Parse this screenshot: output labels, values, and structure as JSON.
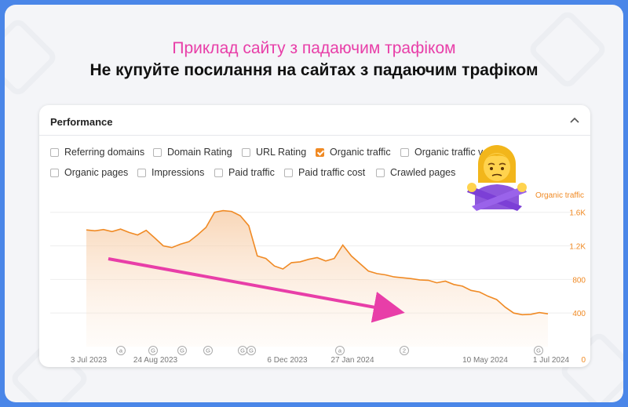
{
  "header": {
    "subtitle": "Приклад сайту з падаючим трафіком",
    "title": "Не купуйте посилання на сайтах з падаючим трафіком"
  },
  "card": {
    "title": "Performance",
    "collapse_icon": "chevron-up-icon",
    "metrics": [
      {
        "label": "Referring domains",
        "checked": false
      },
      {
        "label": "Domain Rating",
        "checked": false
      },
      {
        "label": "URL Rating",
        "checked": false
      },
      {
        "label": "Organic traffic",
        "checked": true
      },
      {
        "label": "Organic traffic v",
        "checked": false
      },
      {
        "label": "Organic pages",
        "checked": false
      },
      {
        "label": "Impressions",
        "checked": false
      },
      {
        "label": "Paid traffic",
        "checked": false
      },
      {
        "label": "Paid traffic cost",
        "checked": false
      },
      {
        "label": "Crawled pages",
        "checked": false
      }
    ]
  },
  "emoji": "person-gesturing-no-icon",
  "colors": {
    "accent": "#f08a24",
    "arrow": "#e83ea8",
    "frame": "#4a86e8"
  },
  "chart_data": {
    "type": "area",
    "series": [
      {
        "name": "Organic traffic",
        "values": [
          1390,
          1380,
          1395,
          1370,
          1400,
          1360,
          1330,
          1385,
          1295,
          1200,
          1180,
          1220,
          1250,
          1330,
          1420,
          1600,
          1620,
          1610,
          1560,
          1440,
          1080,
          1050,
          960,
          925,
          1000,
          1010,
          1040,
          1060,
          1020,
          1050,
          1210,
          1080,
          990,
          900,
          870,
          855,
          830,
          820,
          810,
          795,
          790,
          760,
          780,
          740,
          720,
          670,
          650,
          600,
          560,
          470,
          400,
          380,
          385,
          405,
          390
        ]
      }
    ],
    "x_tick_labels": [
      "3 Jul 2023",
      "24 Aug 2023",
      "6 Dec 2023",
      "27 Jan 2024",
      "10 May 2024",
      "1 Jul 2024"
    ],
    "y_tick_labels": [
      "1.6K",
      "1.2K",
      "800",
      "400",
      "0"
    ],
    "ylim": [
      0,
      1700
    ],
    "legend": "Organic traffic",
    "legend_position": "top-right",
    "grid": true,
    "annotation_markers": [
      "a",
      "G",
      "G",
      "G",
      "G",
      "G",
      "a",
      "2",
      "G"
    ]
  }
}
